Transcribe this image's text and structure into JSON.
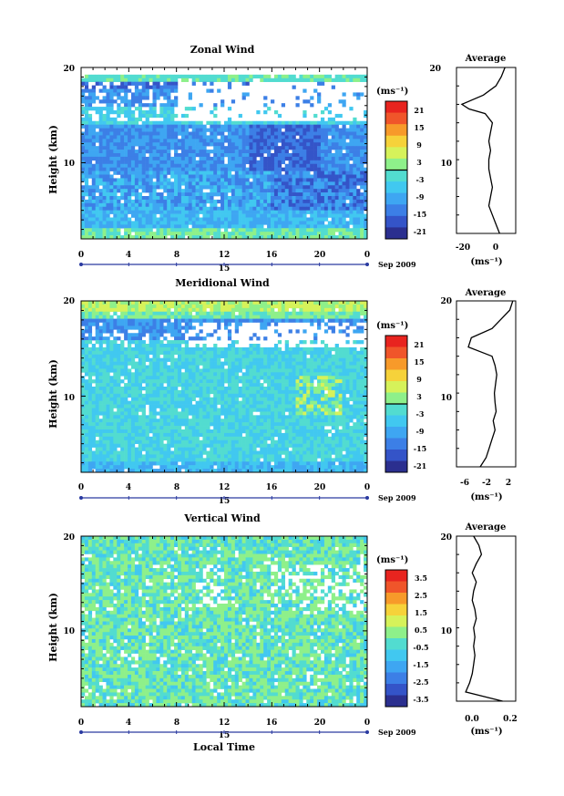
{
  "panels": [
    {
      "title": "Zonal Wind",
      "ylabel": "Height (km)",
      "yticks": [
        "20",
        "10"
      ],
      "xticks": [
        "0",
        "4",
        "8",
        "12",
        "16",
        "20",
        "0"
      ],
      "day_label": "15",
      "date_label": "Sep 2009",
      "unit_label": "(ms⁻¹)",
      "colorbar_ticks": [
        "21",
        "15",
        "9",
        "3",
        "-3",
        "-9",
        "-15",
        "-21"
      ],
      "avg_title": "Average",
      "avg_xticks": [
        "-20",
        "0"
      ],
      "avg_xlabel": "(ms⁻¹)",
      "avg_yticks": [
        "20",
        "10"
      ]
    },
    {
      "title": "Meridional Wind",
      "ylabel": "Height (km)",
      "yticks": [
        "20",
        "10"
      ],
      "xticks": [
        "0",
        "4",
        "8",
        "12",
        "16",
        "20",
        "0"
      ],
      "day_label": "15",
      "date_label": "Sep 2009",
      "unit_label": "(ms⁻¹)",
      "colorbar_ticks": [
        "21",
        "15",
        "9",
        "3",
        "-3",
        "-9",
        "-15",
        "-21"
      ],
      "avg_title": "Average",
      "avg_xticks": [
        "-6",
        "-2",
        "2"
      ],
      "avg_xlabel": "(ms⁻¹)",
      "avg_yticks": [
        "20",
        "10"
      ]
    },
    {
      "title": "Vertical Wind",
      "ylabel": "Height (km)",
      "yticks": [
        "20",
        "10"
      ],
      "xticks": [
        "0",
        "4",
        "8",
        "12",
        "16",
        "20",
        "0"
      ],
      "day_label": "15",
      "date_label": "Sep 2009",
      "unit_label": "(ms⁻¹)",
      "colorbar_ticks": [
        "3.5",
        "2.5",
        "1.5",
        "0.5",
        "-0.5",
        "-1.5",
        "-2.5",
        "-3.5"
      ],
      "avg_title": "Average",
      "avg_xticks": [
        "0.0",
        "0.2"
      ],
      "avg_xlabel": "(ms⁻¹)",
      "avg_yticks": [
        "20",
        "10"
      ],
      "xlabel": "Local Time"
    }
  ],
  "colors": {
    "scale": [
      "#2b2f8f",
      "#3454c8",
      "#3c7fe6",
      "#3ea6f2",
      "#41c8f0",
      "#52dcd0",
      "#8ef08a",
      "#d6f25a",
      "#f6d23a",
      "#f79a2a",
      "#f0552a",
      "#e8241f"
    ]
  },
  "chart_data": [
    {
      "type": "heatmap",
      "title": "Zonal Wind",
      "ylabel": "Height (km)",
      "x_range": [
        0,
        24
      ],
      "y_range": [
        2,
        20
      ],
      "colorbar_range": [
        -24,
        24
      ],
      "average_profile": {
        "title": "Average",
        "x_range": [
          -25,
          8
        ],
        "heights": [
          2,
          3,
          4,
          5,
          6,
          7,
          8,
          9,
          10,
          11,
          12,
          13,
          14,
          15,
          15.5,
          16,
          17,
          18,
          19,
          20
        ],
        "values": [
          -1,
          -3,
          -5,
          -7,
          -6,
          -5,
          -6,
          -7,
          -7,
          -6,
          -7,
          -6,
          -5,
          -9,
          -18,
          -22,
          -10,
          -3,
          0,
          2
        ]
      }
    },
    {
      "type": "heatmap",
      "title": "Meridional Wind",
      "ylabel": "Height (km)",
      "x_range": [
        0,
        24
      ],
      "y_range": [
        2,
        20
      ],
      "colorbar_range": [
        -24,
        24
      ],
      "average_profile": {
        "title": "Average",
        "x_range": [
          -7,
          3
        ],
        "heights": [
          2,
          3,
          4,
          5,
          6,
          7,
          8,
          9,
          10,
          11,
          12,
          13,
          14,
          15,
          16,
          17,
          18,
          19,
          20
        ],
        "values": [
          -3,
          -2,
          -1.5,
          -1,
          -0.5,
          -0.8,
          -0.3,
          -0.5,
          -0.6,
          -0.4,
          -0.2,
          -0.5,
          -1,
          -5,
          -4.5,
          -1,
          0.5,
          2,
          2.5
        ]
      }
    },
    {
      "type": "heatmap",
      "title": "Vertical Wind",
      "ylabel": "Height (km)",
      "xlabel": "Local Time",
      "x_range": [
        0,
        24
      ],
      "y_range": [
        2,
        20
      ],
      "colorbar_range": [
        -4,
        4
      ],
      "average_profile": {
        "title": "Average",
        "x_range": [
          -0.15,
          0.3
        ],
        "heights": [
          2,
          3,
          4,
          5,
          6,
          7,
          8,
          9,
          10,
          11,
          12,
          13,
          14,
          15,
          16,
          17,
          18,
          19,
          20
        ],
        "values": [
          0.2,
          -0.08,
          -0.05,
          -0.03,
          -0.02,
          -0.01,
          -0.02,
          -0.01,
          -0.02,
          0.0,
          -0.01,
          -0.03,
          -0.02,
          0.0,
          -0.03,
          0.0,
          0.04,
          0.02,
          -0.02
        ]
      }
    }
  ]
}
